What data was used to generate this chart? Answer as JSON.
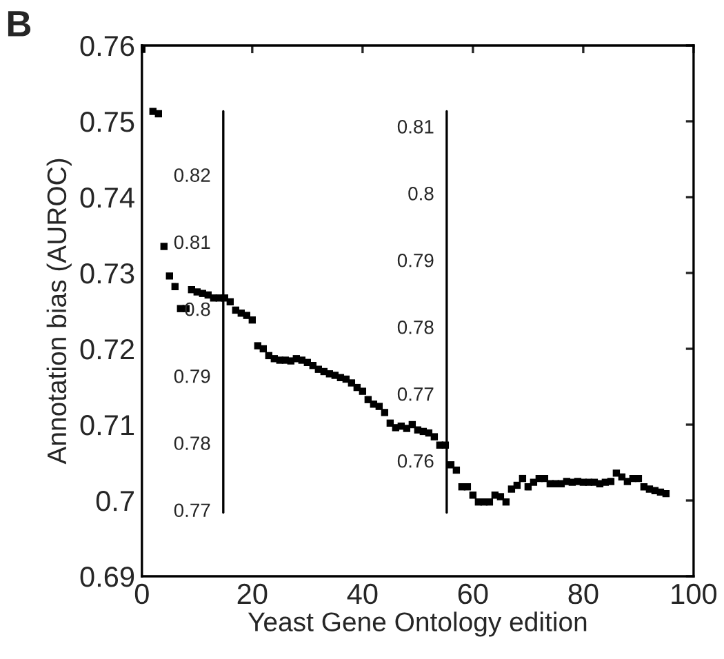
{
  "chart_data": {
    "type": "scatter",
    "annotations": [
      "B"
    ],
    "xlabel": "Yeast Gene Ontology edition",
    "ylabel": "Annotation bias (AUROC)",
    "x": [
      0,
      2,
      3,
      4,
      5,
      6,
      7,
      8,
      9,
      10,
      11,
      12,
      13,
      14,
      15,
      16,
      17,
      18,
      19,
      20,
      21,
      22,
      23,
      24,
      25,
      26,
      27,
      28,
      29,
      30,
      31,
      32,
      33,
      34,
      35,
      36,
      37,
      38,
      39,
      40,
      41,
      42,
      43,
      44,
      45,
      46,
      47,
      48,
      49,
      50,
      51,
      52,
      53,
      54,
      55,
      56,
      57,
      58,
      59,
      60,
      61,
      62,
      63,
      64,
      65,
      66,
      67,
      68,
      69,
      70,
      71,
      72,
      73,
      74,
      75,
      76,
      77,
      78,
      79,
      80,
      81,
      82,
      83,
      84,
      85,
      86,
      87,
      88,
      89,
      90,
      91,
      92,
      93,
      94,
      95
    ],
    "series": [
      {
        "color": "#000000",
        "values": [
          0.7595,
          0.7513,
          0.751,
          0.7335,
          0.7296,
          0.7282,
          0.7253,
          0.7253,
          0.7278,
          0.7275,
          0.7273,
          0.7271,
          0.7267,
          0.7267,
          0.7267,
          0.7262,
          0.7251,
          0.7247,
          0.7244,
          0.7238,
          0.7204,
          0.72,
          0.7191,
          0.7187,
          0.7185,
          0.7185,
          0.7184,
          0.7187,
          0.7185,
          0.7182,
          0.7178,
          0.7173,
          0.717,
          0.7167,
          0.7165,
          0.7162,
          0.716,
          0.7155,
          0.7149,
          0.7144,
          0.7133,
          0.7127,
          0.7124,
          0.7116,
          0.7102,
          0.7096,
          0.7098,
          0.7095,
          0.71,
          0.7093,
          0.7091,
          0.7089,
          0.7084,
          0.7073,
          0.7073,
          0.7047,
          0.704,
          0.7018,
          0.7018,
          0.7007,
          0.6998,
          0.6998,
          0.6998,
          0.7007,
          0.7005,
          0.6998,
          0.7015,
          0.702,
          0.7029,
          0.7018,
          0.7024,
          0.7029,
          0.7029,
          0.7022,
          0.7022,
          0.7022,
          0.7025,
          0.7024,
          0.7025,
          0.7024,
          0.7024,
          0.7024,
          0.7022,
          0.7024,
          0.7025,
          0.7036,
          0.7031,
          0.7025,
          0.7029,
          0.7029,
          0.7018,
          0.7015,
          0.7013,
          0.7011,
          0.7009
        ]
      }
    ],
    "xlim": [
      0,
      100
    ],
    "xticks": [
      0,
      20,
      40,
      60,
      80,
      100
    ],
    "ylim": [
      0.69,
      0.76
    ],
    "yticks": [
      0.69,
      0.7,
      0.71,
      0.72,
      0.73,
      0.74,
      0.75,
      0.76
    ],
    "y2lim": [
      0.7601,
      0.8393
    ],
    "y2ticks": [
      0.77,
      0.78,
      0.79,
      0.8,
      0.81,
      0.82
    ],
    "y3lim": [
      0.7427,
      0.8221
    ],
    "y3ticks": [
      0.76,
      0.77,
      0.78,
      0.79,
      0.8,
      0.81
    ],
    "ref_lines": [
      {
        "axis": "x",
        "value": 14.75,
        "color": "#000000"
      },
      {
        "axis": "x",
        "value": 55.25,
        "color": "#000000"
      }
    ],
    "marker": "square",
    "grid": false,
    "legend": false
  }
}
